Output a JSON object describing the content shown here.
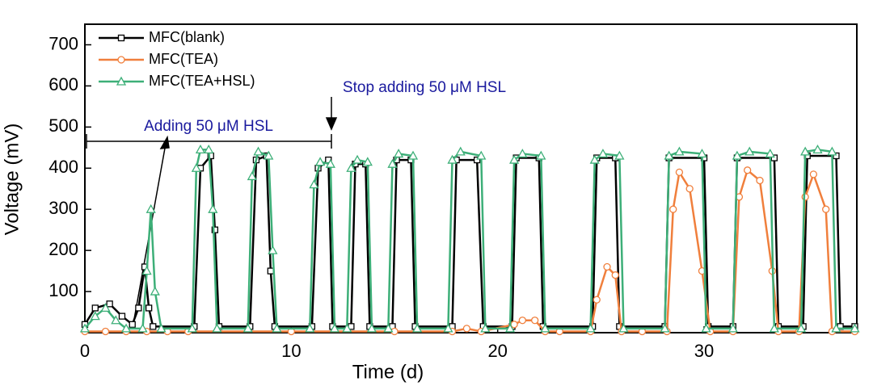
{
  "chart_data": {
    "type": "line",
    "xlabel": "Time (d)",
    "ylabel": "Voltage (mV)",
    "xlim": [
      0,
      37.4
    ],
    "xticks": [
      0,
      10,
      20,
      30
    ],
    "ylim": [
      0,
      750
    ],
    "yticks": [
      100,
      200,
      300,
      400,
      500,
      600,
      700
    ],
    "legend": "upper left",
    "annotations": [
      "Adding 50 μM HSL",
      "Stop adding 50 μM HSL"
    ],
    "series": [
      {
        "name": "MFC(blank)",
        "color": "#000000",
        "marker": "square",
        "x": [
          0,
          0.5,
          1.2,
          1.8,
          2.3,
          2.6,
          2.9,
          3.1,
          3.3,
          5.3,
          5.6,
          6.1,
          6.3,
          6.5,
          8.0,
          8.3,
          8.8,
          9.0,
          9.2,
          11.0,
          11.3,
          11.8,
          12.0,
          12.9,
          13.1,
          13.6,
          13.8,
          14.9,
          15.1,
          15.8,
          16.0,
          17.8,
          18.0,
          19.0,
          19.3,
          20.7,
          20.9,
          22.0,
          22.2,
          24.6,
          24.8,
          25.7,
          25.9,
          28.1,
          28.3,
          30.0,
          30.2,
          31.4,
          31.6,
          33.4,
          33.6,
          34.8,
          35.0,
          36.4,
          36.6,
          37.3
        ],
        "values": [
          20,
          60,
          70,
          40,
          20,
          60,
          160,
          60,
          15,
          15,
          400,
          430,
          250,
          15,
          15,
          420,
          430,
          150,
          15,
          15,
          400,
          420,
          15,
          15,
          410,
          410,
          15,
          15,
          420,
          420,
          15,
          15,
          420,
          420,
          15,
          15,
          425,
          425,
          15,
          15,
          425,
          425,
          15,
          15,
          425,
          425,
          15,
          15,
          425,
          425,
          15,
          15,
          430,
          430,
          15,
          15
        ]
      },
      {
        "name": "MFC(TEA)",
        "color": "#f07f3c",
        "marker": "circle",
        "x": [
          0,
          1,
          2,
          3,
          4,
          5,
          10,
          15,
          17.8,
          18.5,
          19.2,
          20.8,
          21.2,
          21.8,
          22.3,
          23,
          24.5,
          24.8,
          25.3,
          25.7,
          26,
          27,
          28.2,
          28.5,
          28.8,
          29.3,
          29.9,
          30.3,
          31.4,
          31.7,
          32.1,
          32.7,
          33.3,
          33.6,
          34.6,
          34.9,
          35.3,
          35.9,
          36.2,
          37.3
        ],
        "values": [
          3,
          3,
          3,
          3,
          3,
          3,
          3,
          3,
          3,
          10,
          3,
          20,
          30,
          30,
          3,
          3,
          3,
          80,
          160,
          140,
          3,
          3,
          3,
          300,
          390,
          350,
          150,
          3,
          3,
          330,
          395,
          370,
          150,
          3,
          3,
          330,
          385,
          300,
          3,
          3
        ]
      },
      {
        "name": "MFC(TEA+HSL)",
        "color": "#3daf78",
        "marker": "triangle",
        "x": [
          0,
          0.5,
          1,
          1.5,
          2,
          2.8,
          3,
          3.2,
          3.4,
          3.7,
          5.2,
          5.4,
          5.6,
          6.0,
          6.2,
          6.4,
          7.9,
          8.1,
          8.4,
          8.9,
          9.1,
          9.3,
          10.9,
          11.1,
          11.4,
          11.9,
          12.1,
          12.7,
          12.9,
          13.2,
          13.7,
          13.9,
          14.7,
          14.9,
          15.2,
          15.9,
          16.1,
          17.6,
          17.8,
          18.2,
          19.2,
          19.4,
          20.6,
          20.8,
          21.2,
          22.1,
          22.3,
          24.5,
          24.7,
          25.1,
          25.9,
          26.1,
          28.1,
          28.3,
          28.8,
          29.9,
          30.1,
          31.4,
          31.6,
          32.2,
          33.2,
          33.4,
          34.7,
          34.9,
          35.5,
          36.2,
          36.4,
          37.3
        ],
        "values": [
          10,
          40,
          60,
          30,
          10,
          10,
          150,
          300,
          100,
          10,
          10,
          400,
          445,
          445,
          300,
          10,
          10,
          380,
          440,
          430,
          200,
          10,
          10,
          360,
          415,
          410,
          10,
          10,
          400,
          420,
          415,
          10,
          10,
          410,
          435,
          430,
          10,
          10,
          420,
          440,
          430,
          10,
          10,
          420,
          435,
          430,
          10,
          10,
          420,
          435,
          430,
          10,
          10,
          430,
          440,
          435,
          10,
          10,
          430,
          440,
          435,
          10,
          10,
          440,
          445,
          440,
          10,
          10
        ]
      }
    ]
  }
}
